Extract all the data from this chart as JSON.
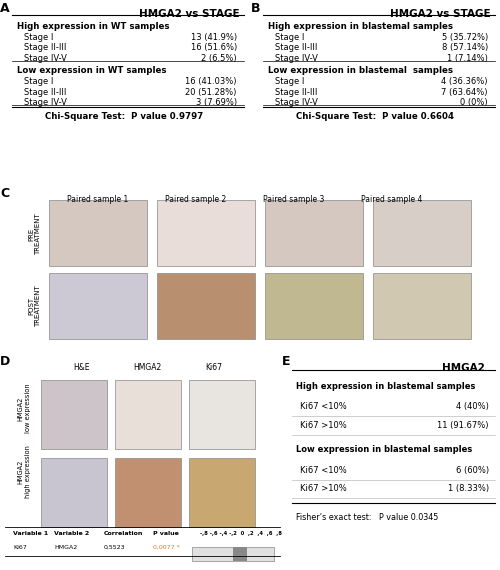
{
  "panel_A": {
    "title": "HMGA2 vs STAGE",
    "sections": [
      {
        "header": "High expression in WT samples",
        "rows": [
          [
            "Stage I",
            "13 (41.9%)"
          ],
          [
            "Stage II-III",
            "16 (51.6%)"
          ],
          [
            "Stage IV-V",
            "2 (6.5%)"
          ]
        ]
      },
      {
        "header": "Low expression in WT samples",
        "rows": [
          [
            "Stage I",
            "16 (41.03%)"
          ],
          [
            "Stage II-III",
            "20 (51.28%)"
          ],
          [
            "Stage IV-V",
            "3 (7.69%)"
          ]
        ]
      }
    ],
    "footer": "Chi-Square Test:  P value 0.9797"
  },
  "panel_B": {
    "title": "HMGA2 vs STAGE",
    "sections": [
      {
        "header": "High expression in blastemal samples",
        "rows": [
          [
            "Stage I",
            "5 (35.72%)"
          ],
          [
            "Stage II-III",
            "8 (57.14%)"
          ],
          [
            "Stage IV-V",
            "1 (7.14%)"
          ]
        ]
      },
      {
        "header": "Low expression in blastemal  samples",
        "rows": [
          [
            "Stage I",
            "4 (36.36%)"
          ],
          [
            "Stage II-III",
            "7 (63.64%)"
          ],
          [
            "Stage IV-V",
            "0 (0%)"
          ]
        ]
      }
    ],
    "footer": "Chi-Square Test:  P value 0.6604"
  },
  "panel_C": {
    "col_labels": [
      "Paired sample 1",
      "Paired sample 2",
      "Paired sample 3",
      "Paired sample 4"
    ],
    "row_labels": [
      "PRE\nTREATMENT",
      "POST\nTREATMENT"
    ]
  },
  "panel_D": {
    "col_labels": [
      "H&E",
      "HMGA2",
      "Ki67"
    ],
    "row_labels": [
      "HMGA2\nlow expression",
      "HMGA2\nhigh expression"
    ],
    "corr_headers": [
      "Variable 1",
      "Variable 2",
      "Correlation",
      "P value"
    ],
    "corr_row": [
      "Ki67",
      "HMGA2",
      "0,5523",
      "0,0077 *"
    ],
    "scale_label": "-,8 -,6 -,4 -,2  0  ,2  ,4  ,6  ,8"
  },
  "panel_E": {
    "title": "HMGA2",
    "sections": [
      {
        "header": "High expression in blastemal samples",
        "rows": [
          [
            "Ki67 <10%",
            "4 (40%)"
          ],
          [
            "Ki67 >10%",
            "11 (91.67%)"
          ]
        ]
      },
      {
        "header": "Low expression in blastemal samples",
        "rows": [
          [
            "Ki67 <10%",
            "6 (60%)"
          ],
          [
            "Ki67 >10%",
            "1 (8.33%)"
          ]
        ]
      }
    ],
    "footer": "Fisher’s exact test:   P value 0.0345"
  },
  "label_color": "#000000",
  "bg_color": "#ffffff",
  "orange_color": "#e07820",
  "line_color": "#888888"
}
